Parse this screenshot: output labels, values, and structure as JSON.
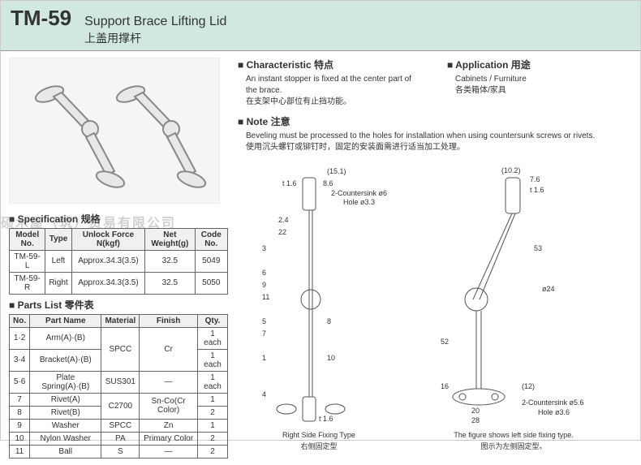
{
  "header": {
    "model": "TM-59",
    "title_en": "Support Brace Lifting Lid",
    "title_cn": "上盖用撑杆"
  },
  "characteristic": {
    "title": "■ Characteristic  特点",
    "text_en": "An instant stopper is fixed at the center part of the brace.",
    "text_cn": "在支架中心部位有止挡功能。"
  },
  "application": {
    "title": "■ Application  用途",
    "text_en": "Cabinets / Furniture",
    "text_cn": "各类箱体/家具"
  },
  "note": {
    "title": "■ Note  注意",
    "text_en": "Beveling must be processed to the holes for installation when using countersunk screws or rivets.",
    "text_cn": "使用沉头螺钉或铆钉时，固定的安装面需进行适当加工处理。"
  },
  "spec_title": "■ Specification  规格",
  "spec_table": {
    "headers": [
      "Model No.",
      "Type",
      "Unlock Force N(kgf)",
      "Net Weight(g)",
      "Code No."
    ],
    "rows": [
      [
        "TM-59-L",
        "Left",
        "Approx.34.3(3.5)",
        "32.5",
        "5049"
      ],
      [
        "TM-59-R",
        "Right",
        "Approx.34.3(3.5)",
        "32.5",
        "5050"
      ]
    ]
  },
  "parts_title": "■ Parts List  零件表",
  "parts_table": {
    "headers": [
      "No.",
      "Part Name",
      "Material",
      "Finish",
      "Qty."
    ],
    "rows": [
      [
        "1·2",
        "Arm(A)·(B)",
        "SPCC",
        "Cr",
        "1 each"
      ],
      [
        "3·4",
        "Bracket(A)·(B)",
        "SPCC",
        "Cr",
        "1 each"
      ],
      [
        "5·6",
        "Plate Spring(A)·(B)",
        "SUS301",
        "—",
        "1 each"
      ],
      [
        "7",
        "Rivet(A)",
        "C2700",
        "Sn-Co(Cr Color)",
        "1"
      ],
      [
        "8",
        "Rivet(B)",
        "C2700",
        "Sn-Co(Cr Color)",
        "2"
      ],
      [
        "9",
        "Washer",
        "SPCC",
        "Zn",
        "1"
      ],
      [
        "10",
        "Nylon Washer",
        "PA",
        "Primary Color",
        "2"
      ],
      [
        "11",
        "Ball",
        "S",
        "—",
        "2"
      ]
    ]
  },
  "diagram": {
    "dims": {
      "d1": "(15.1)",
      "d2": "t 1.6",
      "d3": "8.6",
      "d4": "2-Countersink ø6",
      "d5": "Hole ø3.3",
      "d6": "(10.2)",
      "d7": "7.6",
      "d8": "t 1.6",
      "d9": "53",
      "d10": "52",
      "d11": "ø24",
      "d12": "16",
      "d13": "(12)",
      "d14": "20",
      "d15": "28",
      "d16": "2-Countersink ø5.6",
      "d17": "Hole ø3.6",
      "d18": "t 1.6",
      "d19": "2.4",
      "d20": "22"
    },
    "labels": {
      "p3": "3",
      "p5": "5",
      "p6": "6",
      "p7": "7",
      "p8": "8",
      "p9": "9",
      "p10": "10",
      "p11": "11",
      "p1": "1",
      "p4": "4"
    },
    "caption_right_en": "Right Side Fixing Type",
    "caption_right_cn": "右侧固定型",
    "footnote_en": "The figure shows left side fixing type.",
    "footnote_cn": "图示为左侧固定型。"
  },
  "watermark": "硕木屋（筑）贸易有限公司"
}
